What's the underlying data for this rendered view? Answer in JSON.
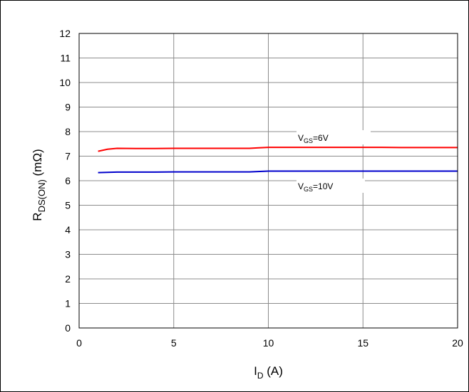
{
  "chart_data": {
    "type": "line",
    "xlabel": {
      "main": "I",
      "sub": "D",
      "rest": " (A)"
    },
    "ylabel": {
      "main": "R",
      "sub": "DS(ON)",
      "rest": " (mΩ)"
    },
    "xlim": [
      0,
      20
    ],
    "ylim": [
      0,
      12
    ],
    "xticks": [
      0,
      5,
      10,
      15,
      20
    ],
    "yticks": [
      0,
      1,
      2,
      3,
      4,
      5,
      6,
      7,
      8,
      9,
      10,
      11,
      12
    ],
    "grid": {
      "horizontal": true,
      "vertical": true
    },
    "series": [
      {
        "label": {
          "main": "V",
          "sub": "GS",
          "rest": "=6V"
        },
        "color": "#ff0000",
        "x": [
          1,
          1.5,
          2,
          3,
          4,
          5,
          6,
          7,
          8,
          9,
          9.5,
          10,
          11,
          12,
          13,
          14,
          15,
          16,
          17,
          18,
          19,
          20
        ],
        "y": [
          7.2,
          7.28,
          7.32,
          7.31,
          7.31,
          7.32,
          7.32,
          7.32,
          7.32,
          7.32,
          7.34,
          7.36,
          7.36,
          7.36,
          7.36,
          7.36,
          7.36,
          7.36,
          7.35,
          7.35,
          7.35,
          7.35
        ]
      },
      {
        "label": {
          "main": "V",
          "sub": "GS",
          "rest": "=10V"
        },
        "color": "#0000cc",
        "x": [
          1,
          2,
          3,
          4,
          5,
          6,
          7,
          8,
          9,
          10,
          11,
          12,
          13,
          14,
          15,
          16,
          17,
          18,
          19,
          20
        ],
        "y": [
          6.33,
          6.35,
          6.35,
          6.35,
          6.36,
          6.36,
          6.36,
          6.36,
          6.36,
          6.39,
          6.39,
          6.39,
          6.39,
          6.39,
          6.39,
          6.39,
          6.39,
          6.39,
          6.39,
          6.39
        ]
      }
    ]
  }
}
